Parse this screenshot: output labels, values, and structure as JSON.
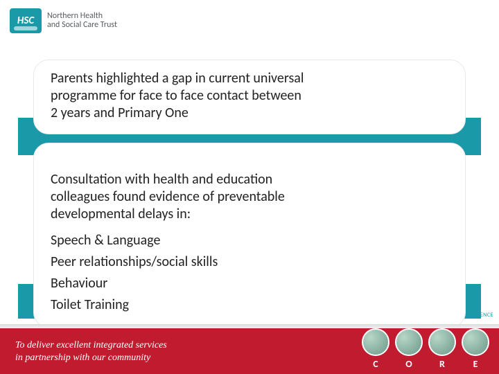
{
  "logo": {
    "badge": "HSC",
    "line1": "Northern Health",
    "line2": "and Social Care Trust"
  },
  "box1": {
    "text": "Parents highlighted a gap in current universal programme for face to face contact between 2 years and Primary One"
  },
  "box2": {
    "intro": "Consultation with health and education colleagues found evidence of preventable developmental delays in:",
    "items": [
      "Speech & Language",
      "Peer relationships/social skills",
      "Behaviour",
      "Toilet Training"
    ]
  },
  "footer": {
    "tagline_line1": "To deliver excellent integrated services",
    "tagline_line2": "in partnership with our community",
    "core": [
      "C",
      "O",
      "R",
      "E"
    ]
  },
  "tiny": "ENCE",
  "colors": {
    "teal": "#1a9aa8",
    "red": "#c01b2e",
    "text": "#222222"
  }
}
